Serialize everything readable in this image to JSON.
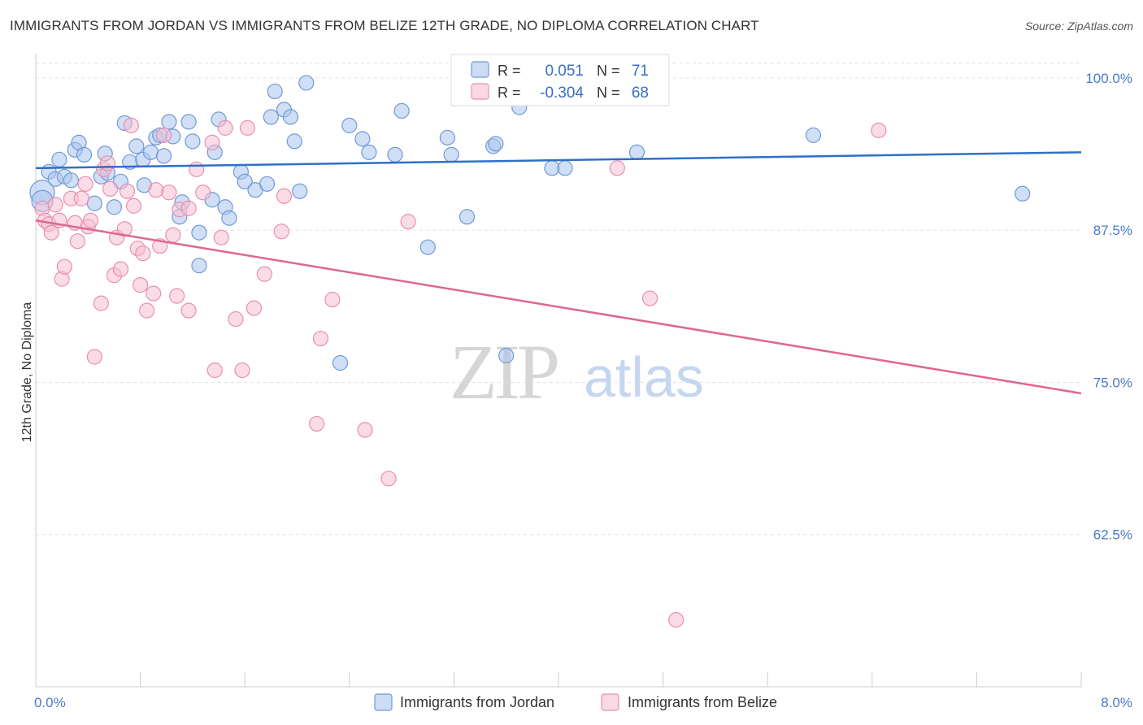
{
  "title": "IMMIGRANTS FROM JORDAN VS IMMIGRANTS FROM BELIZE 12TH GRADE, NO DIPLOMA CORRELATION CHART",
  "source": "Source: ZipAtlas.com",
  "watermark": {
    "zip": "ZIP",
    "atlas": "atlas"
  },
  "colors": {
    "jordan_fill": "#a9c5ee",
    "jordan_stroke": "#6f9ad6",
    "jordan_line": "#2f6fc9",
    "belize_fill": "#f6bfd1",
    "belize_stroke": "#e98fb0",
    "belize_line": "#e0668f",
    "axis_label": "#4a7ac9",
    "grid": "#e2e2e2"
  },
  "stats": {
    "r_label": "R =",
    "n_label": "N =",
    "jordan": {
      "r": "0.051",
      "n": "71"
    },
    "belize": {
      "r": "-0.304",
      "n": "68"
    }
  },
  "chart_data": {
    "type": "scatter",
    "title": "IMMIGRANTS FROM JORDAN VS IMMIGRANTS FROM BELIZE 12TH GRADE, NO DIPLOMA CORRELATION CHART",
    "xlabel": "",
    "ylabel": "12th Grade, No Diploma",
    "xlim": [
      0,
      8
    ],
    "ylim": [
      50.0,
      102.0
    ],
    "x_ticks": [
      "0.0%",
      "8.0%"
    ],
    "y_ticks": [
      {
        "value": 100.0,
        "label": "100.0%"
      },
      {
        "value": 87.5,
        "label": "87.5%"
      },
      {
        "value": 75.0,
        "label": "75.0%"
      },
      {
        "value": 62.5,
        "label": "62.5%"
      }
    ],
    "grid": true,
    "legend": "bottom-center",
    "series": [
      {
        "name": "Immigrants from Jordan",
        "trend": {
          "x": [
            0,
            8
          ],
          "y": [
            92.6,
            93.9
          ]
        },
        "points": [
          [
            0.05,
            90.6
          ],
          [
            0.05,
            89.9
          ],
          [
            0.1,
            92.3
          ],
          [
            0.15,
            91.7
          ],
          [
            0.18,
            93.3
          ],
          [
            0.22,
            91.9
          ],
          [
            0.27,
            91.6
          ],
          [
            0.3,
            94.1
          ],
          [
            0.33,
            94.7
          ],
          [
            0.37,
            93.7
          ],
          [
            0.45,
            89.7
          ],
          [
            0.5,
            91.9
          ],
          [
            0.53,
            93.8
          ],
          [
            0.55,
            92.2
          ],
          [
            0.6,
            89.4
          ],
          [
            0.65,
            91.5
          ],
          [
            0.68,
            96.3
          ],
          [
            0.72,
            93.1
          ],
          [
            0.77,
            94.4
          ],
          [
            0.82,
            93.3
          ],
          [
            0.83,
            91.2
          ],
          [
            0.88,
            93.9
          ],
          [
            0.92,
            95.1
          ],
          [
            0.95,
            95.3
          ],
          [
            0.98,
            93.6
          ],
          [
            1.02,
            96.4
          ],
          [
            1.05,
            95.2
          ],
          [
            1.1,
            88.6
          ],
          [
            1.12,
            89.8
          ],
          [
            1.17,
            96.4
          ],
          [
            1.2,
            94.8
          ],
          [
            1.25,
            87.3
          ],
          [
            1.25,
            84.6
          ],
          [
            1.35,
            90.0
          ],
          [
            1.37,
            93.9
          ],
          [
            1.4,
            96.6
          ],
          [
            1.45,
            89.4
          ],
          [
            1.48,
            88.5
          ],
          [
            1.57,
            92.3
          ],
          [
            1.6,
            91.5
          ],
          [
            1.68,
            90.8
          ],
          [
            1.77,
            91.3
          ],
          [
            1.8,
            96.8
          ],
          [
            1.83,
            98.9
          ],
          [
            1.9,
            97.4
          ],
          [
            1.95,
            96.8
          ],
          [
            1.98,
            94.8
          ],
          [
            2.02,
            90.7
          ],
          [
            2.07,
            99.6
          ],
          [
            2.33,
            76.6
          ],
          [
            2.4,
            96.1
          ],
          [
            2.5,
            95.0
          ],
          [
            2.55,
            93.9
          ],
          [
            2.75,
            93.7
          ],
          [
            2.8,
            97.3
          ],
          [
            3.0,
            86.1
          ],
          [
            3.15,
            95.1
          ],
          [
            3.18,
            93.7
          ],
          [
            3.3,
            88.6
          ],
          [
            3.5,
            94.4
          ],
          [
            3.52,
            94.6
          ],
          [
            3.6,
            77.2
          ],
          [
            3.6,
            99.9
          ],
          [
            3.7,
            97.6
          ],
          [
            3.95,
            92.6
          ],
          [
            4.05,
            92.6
          ],
          [
            4.6,
            93.9
          ],
          [
            5.95,
            95.3
          ],
          [
            7.55,
            90.5
          ]
        ]
      },
      {
        "name": "Immigrants from Belize",
        "trend": {
          "x": [
            0,
            8
          ],
          "y": [
            88.3,
            74.1
          ]
        },
        "points": [
          [
            0.05,
            89.3
          ],
          [
            0.07,
            88.3
          ],
          [
            0.1,
            88.0
          ],
          [
            0.12,
            87.3
          ],
          [
            0.15,
            89.6
          ],
          [
            0.18,
            88.3
          ],
          [
            0.2,
            83.5
          ],
          [
            0.22,
            84.5
          ],
          [
            0.27,
            90.1
          ],
          [
            0.3,
            88.1
          ],
          [
            0.32,
            86.6
          ],
          [
            0.35,
            90.1
          ],
          [
            0.38,
            91.3
          ],
          [
            0.4,
            87.8
          ],
          [
            0.42,
            88.3
          ],
          [
            0.45,
            77.1
          ],
          [
            0.5,
            81.5
          ],
          [
            0.52,
            92.5
          ],
          [
            0.55,
            93.0
          ],
          [
            0.57,
            90.9
          ],
          [
            0.6,
            83.8
          ],
          [
            0.62,
            86.9
          ],
          [
            0.65,
            84.3
          ],
          [
            0.68,
            87.6
          ],
          [
            0.7,
            90.7
          ],
          [
            0.73,
            96.1
          ],
          [
            0.75,
            89.5
          ],
          [
            0.78,
            86.0
          ],
          [
            0.8,
            83.0
          ],
          [
            0.82,
            85.6
          ],
          [
            0.85,
            80.9
          ],
          [
            0.9,
            82.3
          ],
          [
            0.92,
            90.8
          ],
          [
            0.95,
            86.2
          ],
          [
            0.98,
            95.3
          ],
          [
            1.02,
            90.6
          ],
          [
            1.05,
            87.1
          ],
          [
            1.08,
            82.1
          ],
          [
            1.1,
            89.2
          ],
          [
            1.17,
            89.3
          ],
          [
            1.17,
            80.9
          ],
          [
            1.23,
            92.5
          ],
          [
            1.28,
            90.6
          ],
          [
            1.35,
            94.7
          ],
          [
            1.37,
            76.0
          ],
          [
            1.42,
            86.9
          ],
          [
            1.45,
            95.9
          ],
          [
            1.53,
            80.2
          ],
          [
            1.58,
            76.0
          ],
          [
            1.62,
            95.9
          ],
          [
            1.67,
            81.1
          ],
          [
            1.75,
            83.9
          ],
          [
            1.88,
            87.4
          ],
          [
            1.9,
            90.3
          ],
          [
            2.15,
            71.6
          ],
          [
            2.18,
            78.6
          ],
          [
            2.27,
            81.8
          ],
          [
            2.52,
            71.1
          ],
          [
            2.7,
            67.1
          ],
          [
            2.85,
            88.2
          ],
          [
            4.45,
            92.6
          ],
          [
            4.7,
            81.9
          ],
          [
            4.9,
            55.5
          ],
          [
            6.45,
            95.7
          ]
        ]
      }
    ]
  },
  "legend": {
    "jordan": "Immigrants from Jordan",
    "belize": "Immigrants from Belize"
  }
}
